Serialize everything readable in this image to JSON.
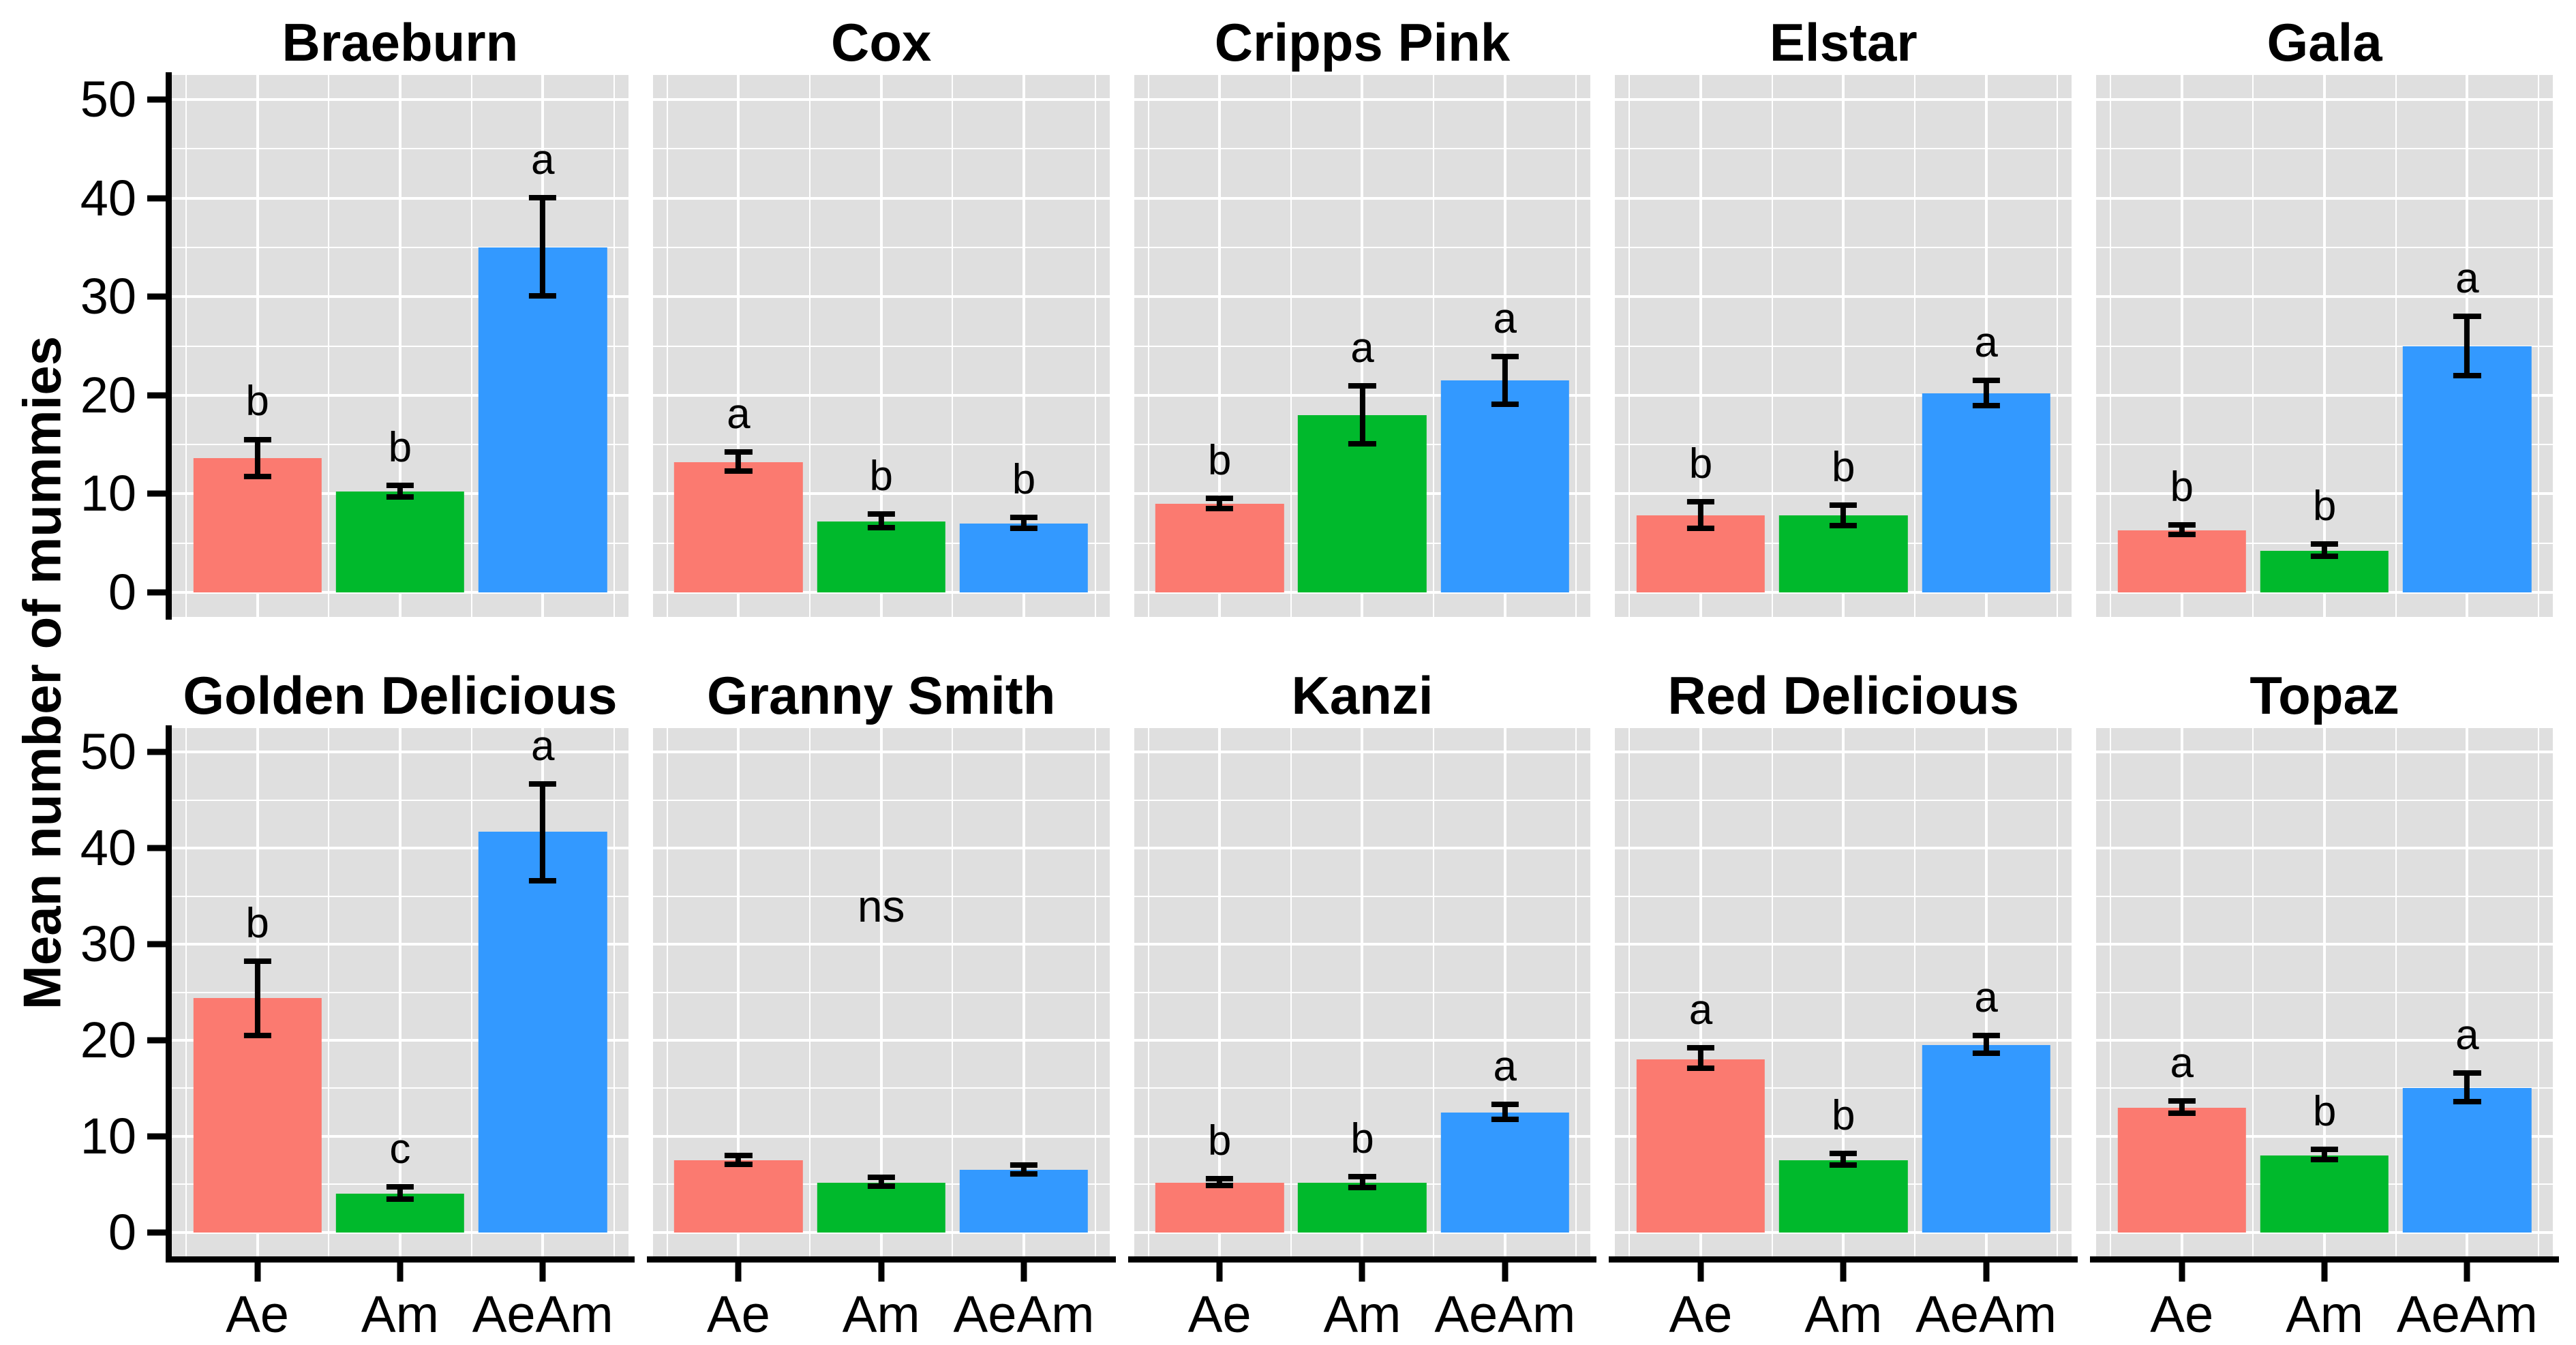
{
  "chart_data": {
    "type": "bar",
    "title": "",
    "ylabel": "Mean number of mummies",
    "xlabel": "",
    "categories": [
      "Ae",
      "Am",
      "AeAm"
    ],
    "group_colors": {
      "Ae": "#FB7A70",
      "Am": "#00B92C",
      "AeAm": "#3399FF"
    },
    "y_ticks": [
      0,
      10,
      20,
      30,
      40,
      50
    ],
    "y_minor_ticks": [
      5,
      15,
      25,
      35,
      45
    ],
    "ylim": [
      -2.5,
      52.5
    ],
    "grid": true,
    "legend": "none",
    "error_bars": "mean ± SE",
    "facet_layout": {
      "rows": 2,
      "cols": 5
    },
    "facets": [
      {
        "name": "Braeburn",
        "row": 0,
        "annotation": null,
        "bars": [
          {
            "group": "Ae",
            "mean": 13.6,
            "err_low": 11.5,
            "err_high": 15.8,
            "letter": "b"
          },
          {
            "group": "Am",
            "mean": 10.2,
            "err_low": 9.4,
            "err_high": 11.1,
            "letter": "b"
          },
          {
            "group": "AeAm",
            "mean": 35.0,
            "err_low": 29.8,
            "err_high": 40.3,
            "letter": "a"
          }
        ]
      },
      {
        "name": "Cox",
        "row": 0,
        "annotation": null,
        "bars": [
          {
            "group": "Ae",
            "mean": 13.2,
            "err_low": 12.0,
            "err_high": 14.5,
            "letter": "a"
          },
          {
            "group": "Am",
            "mean": 7.2,
            "err_low": 6.3,
            "err_high": 8.2,
            "letter": "b"
          },
          {
            "group": "AeAm",
            "mean": 7.0,
            "err_low": 6.2,
            "err_high": 7.9,
            "letter": "b"
          }
        ]
      },
      {
        "name": "Cripps Pink",
        "row": 0,
        "annotation": null,
        "bars": [
          {
            "group": "Ae",
            "mean": 9.0,
            "err_low": 8.2,
            "err_high": 9.8,
            "letter": "b"
          },
          {
            "group": "Am",
            "mean": 18.0,
            "err_low": 14.8,
            "err_high": 21.2,
            "letter": "a"
          },
          {
            "group": "AeAm",
            "mean": 21.5,
            "err_low": 18.8,
            "err_high": 24.2,
            "letter": "a"
          }
        ]
      },
      {
        "name": "Elstar",
        "row": 0,
        "annotation": null,
        "bars": [
          {
            "group": "Ae",
            "mean": 7.8,
            "err_low": 6.2,
            "err_high": 9.5,
            "letter": "b"
          },
          {
            "group": "Am",
            "mean": 7.8,
            "err_low": 6.5,
            "err_high": 9.1,
            "letter": "b"
          },
          {
            "group": "AeAm",
            "mean": 20.2,
            "err_low": 18.7,
            "err_high": 21.8,
            "letter": "a"
          }
        ]
      },
      {
        "name": "Gala",
        "row": 0,
        "annotation": null,
        "bars": [
          {
            "group": "Ae",
            "mean": 6.3,
            "err_low": 5.6,
            "err_high": 7.1,
            "letter": "b"
          },
          {
            "group": "Am",
            "mean": 4.2,
            "err_low": 3.4,
            "err_high": 5.2,
            "letter": "b"
          },
          {
            "group": "AeAm",
            "mean": 25.0,
            "err_low": 21.7,
            "err_high": 28.3,
            "letter": "a"
          }
        ]
      },
      {
        "name": "Golden Delicious",
        "row": 1,
        "annotation": null,
        "bars": [
          {
            "group": "Ae",
            "mean": 24.4,
            "err_low": 20.2,
            "err_high": 28.5,
            "letter": "b"
          },
          {
            "group": "Am",
            "mean": 4.0,
            "err_low": 3.2,
            "err_high": 5.0,
            "letter": "c"
          },
          {
            "group": "AeAm",
            "mean": 41.7,
            "err_low": 36.3,
            "err_high": 47.0,
            "letter": "a"
          }
        ]
      },
      {
        "name": "Granny Smith",
        "row": 1,
        "annotation": "ns",
        "annotation_y": 34,
        "bars": [
          {
            "group": "Ae",
            "mean": 7.5,
            "err_low": 6.8,
            "err_high": 8.3,
            "letter": null
          },
          {
            "group": "Am",
            "mean": 5.2,
            "err_low": 4.5,
            "err_high": 6.0,
            "letter": null
          },
          {
            "group": "AeAm",
            "mean": 6.5,
            "err_low": 5.8,
            "err_high": 7.3,
            "letter": null
          }
        ]
      },
      {
        "name": "Kanzi",
        "row": 1,
        "annotation": null,
        "bars": [
          {
            "group": "Ae",
            "mean": 5.2,
            "err_low": 4.6,
            "err_high": 5.9,
            "letter": "b"
          },
          {
            "group": "Am",
            "mean": 5.2,
            "err_low": 4.4,
            "err_high": 6.1,
            "letter": "b"
          },
          {
            "group": "AeAm",
            "mean": 12.5,
            "err_low": 11.5,
            "err_high": 13.6,
            "letter": "a"
          }
        ]
      },
      {
        "name": "Red Delicious",
        "row": 1,
        "annotation": null,
        "bars": [
          {
            "group": "Ae",
            "mean": 18.0,
            "err_low": 16.8,
            "err_high": 19.5,
            "letter": "a"
          },
          {
            "group": "Am",
            "mean": 7.5,
            "err_low": 6.7,
            "err_high": 8.5,
            "letter": "b"
          },
          {
            "group": "AeAm",
            "mean": 19.5,
            "err_low": 18.4,
            "err_high": 20.8,
            "letter": "a"
          }
        ]
      },
      {
        "name": "Topaz",
        "row": 1,
        "annotation": null,
        "bars": [
          {
            "group": "Ae",
            "mean": 13.0,
            "err_low": 12.1,
            "err_high": 14.0,
            "letter": "a"
          },
          {
            "group": "Am",
            "mean": 8.0,
            "err_low": 7.3,
            "err_high": 8.9,
            "letter": "b"
          },
          {
            "group": "AeAm",
            "mean": 15.0,
            "err_low": 13.3,
            "err_high": 16.9,
            "letter": "a"
          }
        ]
      }
    ]
  }
}
